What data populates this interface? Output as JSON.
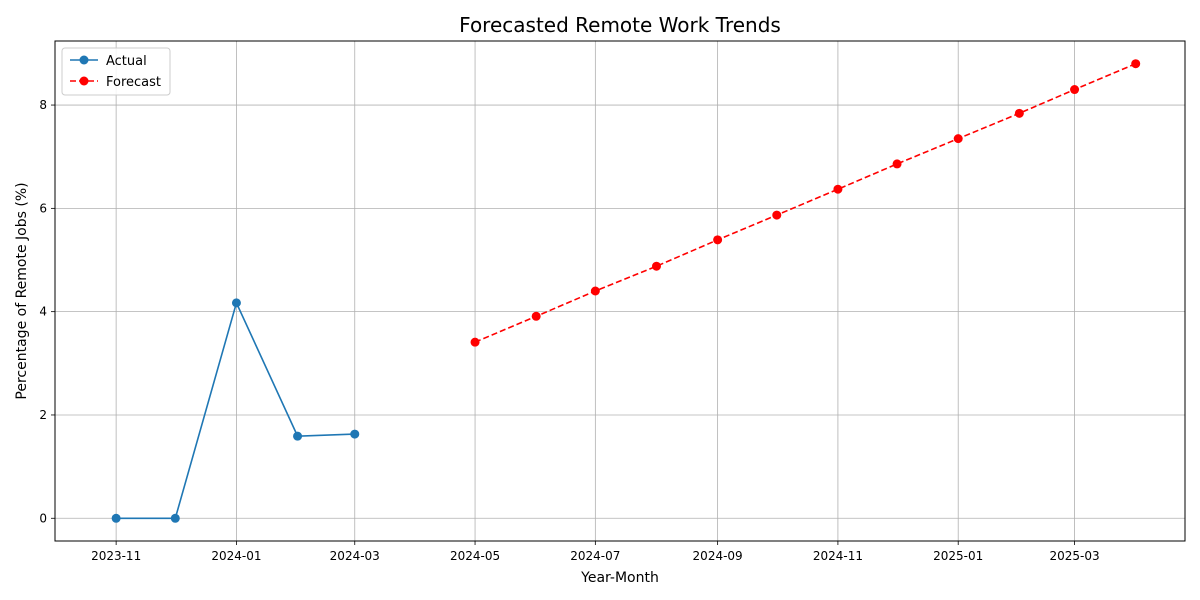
{
  "chart_data": {
    "type": "line",
    "title": "Forecasted Remote Work Trends",
    "xlabel": "Year-Month",
    "ylabel": "Percentage of Remote Jobs (%)",
    "xlim": [
      "2023-10-01",
      "2025-04-26"
    ],
    "ylim": [
      -0.44,
      9.24
    ],
    "x_ticks": [
      "2023-11",
      "2024-01",
      "2024-03",
      "2024-05",
      "2024-07",
      "2024-09",
      "2024-11",
      "2025-01",
      "2025-03"
    ],
    "y_ticks": [
      0,
      2,
      4,
      6,
      8
    ],
    "grid": true,
    "legend_position": "top-left",
    "series": [
      {
        "name": "Actual",
        "color": "#1f77b4",
        "line_style": "solid",
        "marker": "circle",
        "points": [
          {
            "x": "2023-11-01",
            "y": 0.0
          },
          {
            "x": "2023-12-01",
            "y": 0.0
          },
          {
            "x": "2024-01-01",
            "y": 4.17
          },
          {
            "x": "2024-02-01",
            "y": 1.59
          },
          {
            "x": "2024-03-01",
            "y": 1.63
          }
        ]
      },
      {
        "name": "Forecast",
        "color": "#ff0000",
        "line_style": "dashed",
        "marker": "circle",
        "points": [
          {
            "x": "2024-05-01",
            "y": 3.41
          },
          {
            "x": "2024-06-01",
            "y": 3.91
          },
          {
            "x": "2024-07-01",
            "y": 4.4
          },
          {
            "x": "2024-08-01",
            "y": 4.88
          },
          {
            "x": "2024-09-01",
            "y": 5.39
          },
          {
            "x": "2024-10-01",
            "y": 5.87
          },
          {
            "x": "2024-11-01",
            "y": 6.37
          },
          {
            "x": "2024-12-01",
            "y": 6.86
          },
          {
            "x": "2025-01-01",
            "y": 7.35
          },
          {
            "x": "2025-02-01",
            "y": 7.84
          },
          {
            "x": "2025-03-01",
            "y": 8.3
          },
          {
            "x": "2025-04-01",
            "y": 8.8
          }
        ]
      }
    ]
  }
}
